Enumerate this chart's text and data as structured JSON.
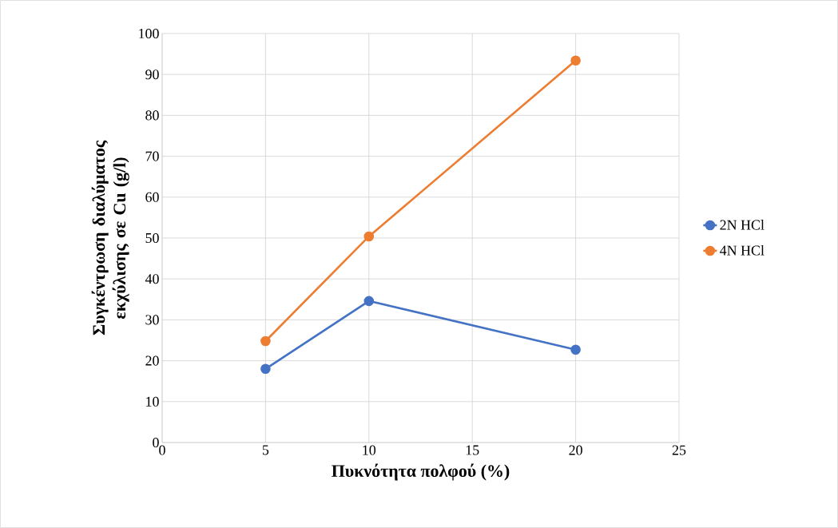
{
  "chart_data": {
    "type": "line",
    "xlabel": "Πυκνότητα πολφού (%)",
    "ylabel": "Συγκέντρωση διαλύματος εκχύλισης σε Cu (g/l)",
    "x": [
      5,
      10,
      20
    ],
    "series": [
      {
        "name": "2N HCl",
        "color": "#4472c4",
        "values": [
          18,
          34.6,
          22.7
        ]
      },
      {
        "name": "4N HCl",
        "color": "#ed7d31",
        "values": [
          24.8,
          50.4,
          93.4
        ]
      }
    ],
    "xlim": [
      0,
      25
    ],
    "xticks": [
      0,
      5,
      10,
      15,
      20,
      25
    ],
    "ylim": [
      0,
      100
    ],
    "yticks": [
      0,
      10,
      20,
      30,
      40,
      50,
      60,
      70,
      80,
      90,
      100
    ],
    "grid": true,
    "legend": "right",
    "marker": "circle",
    "line_style": "solid"
  }
}
